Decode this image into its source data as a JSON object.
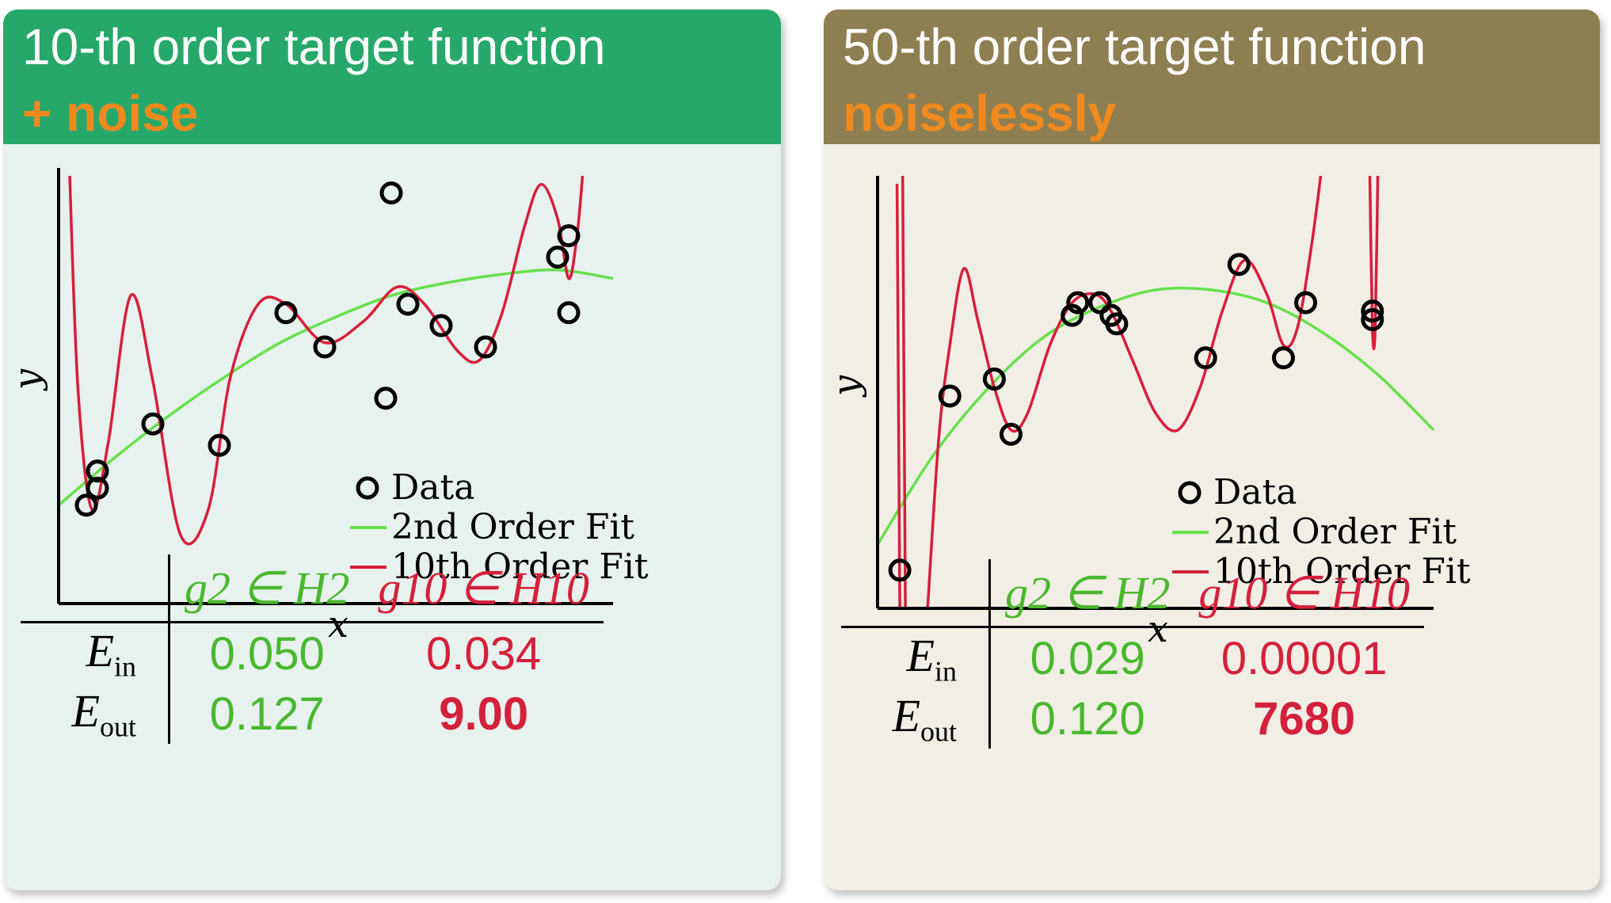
{
  "panels": [
    {
      "title": "10-th order target function",
      "subtitle": "+ noise",
      "colors": {
        "header": "#27a86b",
        "subtitle": "#f08a1e",
        "background": "#e7f1ee"
      },
      "table": {
        "col1": "g2 ∈ H2",
        "col2": "g10 ∈ H10",
        "rows": [
          {
            "label": "E",
            "sub": "in",
            "v2": "0.050",
            "v10": "0.034"
          },
          {
            "label": "E",
            "sub": "out",
            "v2": "0.127",
            "v10": "9.00"
          }
        ]
      }
    },
    {
      "title": "50-th order target function",
      "subtitle": "noiselessly",
      "colors": {
        "header": "#8e7f52",
        "subtitle": "#f08a1e",
        "background": "#f1eee6"
      },
      "table": {
        "col1": "g2 ∈ H2",
        "col2": "g10 ∈ H10",
        "rows": [
          {
            "label": "E",
            "sub": "in",
            "v2": "0.029",
            "v10": "0.00001"
          },
          {
            "label": "E",
            "sub": "out",
            "v2": "0.120",
            "v10": "7680"
          }
        ]
      }
    }
  ],
  "chart_data": [
    {
      "type": "scatter",
      "xlabel": "x",
      "ylabel": "y",
      "xlim": [
        0,
        1
      ],
      "ylim": [
        0,
        1
      ],
      "legend": {
        "placement": "bottom-right",
        "entries": [
          "Data",
          "2nd Order Fit",
          "10th Order Fit"
        ]
      },
      "series": [
        {
          "name": "Data",
          "type": "scatter",
          "points": [
            [
              0.05,
              0.23
            ],
            [
              0.07,
              0.31
            ],
            [
              0.07,
              0.27
            ],
            [
              0.17,
              0.42
            ],
            [
              0.29,
              0.37
            ],
            [
              0.41,
              0.68
            ],
            [
              0.48,
              0.6
            ],
            [
              0.6,
              0.96
            ],
            [
              0.59,
              0.48
            ],
            [
              0.63,
              0.7
            ],
            [
              0.69,
              0.65
            ],
            [
              0.77,
              0.6
            ],
            [
              0.9,
              0.81
            ],
            [
              0.92,
              0.86
            ],
            [
              0.92,
              0.68
            ]
          ]
        },
        {
          "name": "2nd Order Fit",
          "type": "line",
          "points": [
            [
              0,
              0.23
            ],
            [
              0.1,
              0.34
            ],
            [
              0.2,
              0.44
            ],
            [
              0.3,
              0.53
            ],
            [
              0.4,
              0.61
            ],
            [
              0.5,
              0.67
            ],
            [
              0.6,
              0.72
            ],
            [
              0.7,
              0.75
            ],
            [
              0.8,
              0.77
            ],
            [
              0.9,
              0.78
            ],
            [
              1.0,
              0.76
            ]
          ]
        },
        {
          "name": "10th Order Fit",
          "type": "line",
          "points": [
            [
              0.02,
              1.0
            ],
            [
              0.035,
              0.5
            ],
            [
              0.06,
              0.22
            ],
            [
              0.09,
              0.38
            ],
            [
              0.13,
              0.72
            ],
            [
              0.17,
              0.52
            ],
            [
              0.22,
              0.16
            ],
            [
              0.27,
              0.22
            ],
            [
              0.31,
              0.53
            ],
            [
              0.36,
              0.7
            ],
            [
              0.41,
              0.7
            ],
            [
              0.48,
              0.61
            ],
            [
              0.55,
              0.66
            ],
            [
              0.61,
              0.74
            ],
            [
              0.66,
              0.7
            ],
            [
              0.72,
              0.59
            ],
            [
              0.76,
              0.57
            ],
            [
              0.8,
              0.68
            ],
            [
              0.84,
              0.88
            ],
            [
              0.87,
              0.98
            ],
            [
              0.9,
              0.9
            ],
            [
              0.92,
              0.76
            ],
            [
              0.935,
              0.86
            ],
            [
              0.945,
              1.0
            ]
          ]
        }
      ]
    },
    {
      "type": "scatter",
      "xlabel": "x",
      "ylabel": "y",
      "xlim": [
        0,
        1
      ],
      "ylim": [
        0,
        1
      ],
      "legend": {
        "placement": "bottom-right",
        "entries": [
          "Data",
          "2nd Order Fit",
          "10th Order Fit"
        ]
      },
      "series": [
        {
          "name": "Data",
          "type": "scatter",
          "points": [
            [
              0.04,
              0.09
            ],
            [
              0.13,
              0.5
            ],
            [
              0.21,
              0.54
            ],
            [
              0.24,
              0.41
            ],
            [
              0.35,
              0.69
            ],
            [
              0.36,
              0.72
            ],
            [
              0.4,
              0.72
            ],
            [
              0.43,
              0.67
            ],
            [
              0.42,
              0.69
            ],
            [
              0.59,
              0.59
            ],
            [
              0.65,
              0.81
            ],
            [
              0.73,
              0.59
            ],
            [
              0.77,
              0.72
            ],
            [
              0.89,
              0.68
            ],
            [
              0.89,
              0.7
            ]
          ]
        },
        {
          "name": "2nd Order Fit",
          "type": "line",
          "points": [
            [
              0,
              0.15
            ],
            [
              0.1,
              0.36
            ],
            [
              0.2,
              0.52
            ],
            [
              0.3,
              0.64
            ],
            [
              0.4,
              0.71
            ],
            [
              0.5,
              0.75
            ],
            [
              0.6,
              0.75
            ],
            [
              0.7,
              0.72
            ],
            [
              0.8,
              0.65
            ],
            [
              0.9,
              0.55
            ],
            [
              1.0,
              0.42
            ]
          ]
        },
        {
          "name": "10th Order Fit",
          "type": "line",
          "points": [
            [
              0.035,
              1.0
            ],
            [
              0.04,
              0.0
            ]
          ]
        }
      ]
    }
  ]
}
